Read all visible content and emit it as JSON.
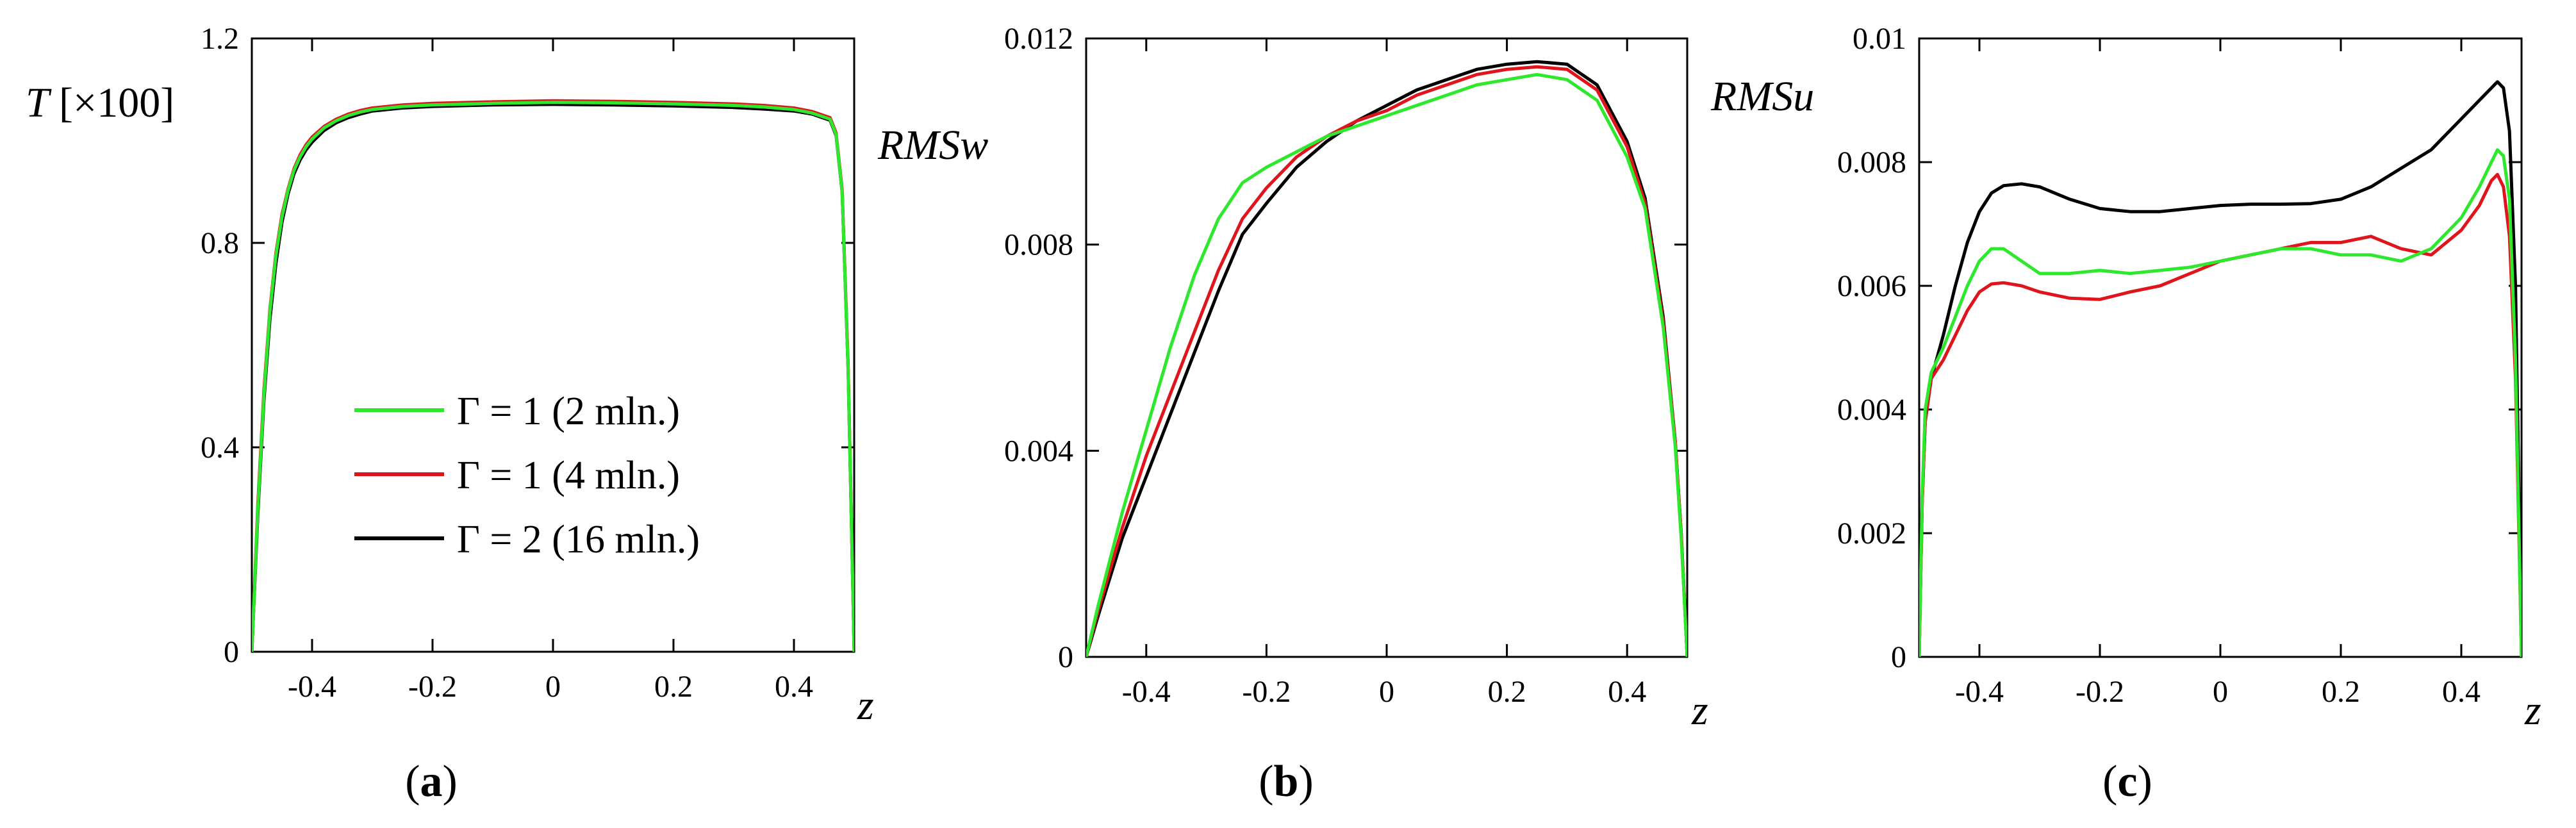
{
  "chart_data": [
    {
      "id": "a",
      "type": "line",
      "panel_label": "(a)",
      "ylabel": "T [×100]",
      "xlabel": "z",
      "xlim": [
        -0.5,
        0.5
      ],
      "ylim": [
        0,
        1.2
      ],
      "xticks": [
        -0.4,
        -0.2,
        0,
        0.2,
        0.4
      ],
      "xtick_labels": [
        "-0.4",
        "-0.2",
        "0",
        "0.2",
        "0.4"
      ],
      "yticks": [
        0,
        0.4,
        0.8,
        1.2
      ],
      "ytick_labels": [
        "0",
        "0.4",
        "0.8",
        "1.2"
      ],
      "grid": false,
      "legend": {
        "placement": "center-left",
        "entries": [
          "Γ = 1 (2 mln.)",
          "Γ = 1 (4 mln.)",
          "Γ = 2 (16 mln.)"
        ]
      },
      "series": [
        {
          "name": "Γ = 2 (16 mln.)",
          "color": "#000000",
          "x": [
            -0.5,
            -0.49,
            -0.48,
            -0.47,
            -0.46,
            -0.45,
            -0.44,
            -0.43,
            -0.42,
            -0.41,
            -0.4,
            -0.38,
            -0.36,
            -0.34,
            -0.32,
            -0.3,
            -0.25,
            -0.2,
            -0.1,
            0,
            0.1,
            0.2,
            0.3,
            0.35,
            0.4,
            0.43,
            0.46,
            0.47,
            0.48,
            0.49,
            0.5
          ],
          "y": [
            0,
            0.27,
            0.49,
            0.65,
            0.76,
            0.84,
            0.895,
            0.935,
            0.962,
            0.982,
            0.997,
            1.02,
            1.035,
            1.045,
            1.052,
            1.058,
            1.064,
            1.067,
            1.07,
            1.071,
            1.07,
            1.068,
            1.065,
            1.062,
            1.058,
            1.052,
            1.04,
            1.01,
            0.9,
            0.55,
            0
          ]
        },
        {
          "name": "Γ = 1 (4 mln.)",
          "color": "#e0141c",
          "x": [
            -0.5,
            -0.49,
            -0.48,
            -0.47,
            -0.46,
            -0.45,
            -0.44,
            -0.43,
            -0.42,
            -0.41,
            -0.4,
            -0.38,
            -0.36,
            -0.34,
            -0.32,
            -0.3,
            -0.25,
            -0.2,
            -0.1,
            0,
            0.1,
            0.2,
            0.3,
            0.35,
            0.4,
            0.43,
            0.46,
            0.47,
            0.48,
            0.49,
            0.5
          ],
          "y": [
            0,
            0.29,
            0.51,
            0.67,
            0.78,
            0.855,
            0.905,
            0.945,
            0.972,
            0.992,
            1.007,
            1.028,
            1.042,
            1.052,
            1.059,
            1.064,
            1.07,
            1.073,
            1.076,
            1.078,
            1.077,
            1.075,
            1.072,
            1.069,
            1.064,
            1.057,
            1.045,
            1.015,
            0.905,
            0.56,
            0
          ]
        },
        {
          "name": "Γ = 1 (2 mln.)",
          "color": "#2ee82e",
          "x": [
            -0.5,
            -0.49,
            -0.48,
            -0.47,
            -0.46,
            -0.45,
            -0.44,
            -0.43,
            -0.42,
            -0.41,
            -0.4,
            -0.38,
            -0.36,
            -0.34,
            -0.32,
            -0.3,
            -0.25,
            -0.2,
            -0.1,
            0,
            0.1,
            0.2,
            0.3,
            0.35,
            0.4,
            0.43,
            0.46,
            0.47,
            0.48,
            0.49,
            0.5
          ],
          "y": [
            0,
            0.28,
            0.5,
            0.665,
            0.775,
            0.85,
            0.902,
            0.942,
            0.968,
            0.988,
            1.003,
            1.025,
            1.039,
            1.049,
            1.056,
            1.061,
            1.067,
            1.07,
            1.073,
            1.075,
            1.074,
            1.072,
            1.069,
            1.066,
            1.061,
            1.054,
            1.042,
            1.012,
            0.9,
            0.55,
            0
          ]
        }
      ]
    },
    {
      "id": "b",
      "type": "line",
      "panel_label": "(b)",
      "ylabel": "RMSw",
      "xlabel": "z",
      "xlim": [
        -0.5,
        0.5
      ],
      "ylim": [
        0,
        0.012
      ],
      "xticks": [
        -0.4,
        -0.2,
        0,
        0.2,
        0.4
      ],
      "xtick_labels": [
        "-0.4",
        "-0.2",
        "0",
        "0.2",
        "0.4"
      ],
      "yticks": [
        0,
        0.004,
        0.008,
        0.012
      ],
      "ytick_labels": [
        "0",
        "0.004",
        "0.008",
        "0.012"
      ],
      "grid": false,
      "series": [
        {
          "name": "Γ = 2 (16 mln.)",
          "color": "#000000",
          "x": [
            -0.5,
            -0.48,
            -0.46,
            -0.44,
            -0.42,
            -0.4,
            -0.36,
            -0.32,
            -0.28,
            -0.24,
            -0.2,
            -0.15,
            -0.1,
            -0.05,
            0,
            0.05,
            0.1,
            0.15,
            0.2,
            0.25,
            0.3,
            0.35,
            0.4,
            0.43,
            0.46,
            0.48,
            0.49,
            0.5
          ],
          "y": [
            0,
            0.0008,
            0.00155,
            0.0023,
            0.0029,
            0.0035,
            0.0047,
            0.0059,
            0.0071,
            0.0082,
            0.0088,
            0.0095,
            0.01,
            0.0104,
            0.0107,
            0.011,
            0.0112,
            0.0114,
            0.0115,
            0.01155,
            0.0115,
            0.0111,
            0.01,
            0.0089,
            0.0066,
            0.0042,
            0.0024,
            0
          ]
        },
        {
          "name": "Γ = 1 (4 mln.)",
          "color": "#e0141c",
          "x": [
            -0.5,
            -0.48,
            -0.46,
            -0.44,
            -0.42,
            -0.4,
            -0.36,
            -0.32,
            -0.28,
            -0.24,
            -0.2,
            -0.15,
            -0.1,
            -0.05,
            0,
            0.05,
            0.1,
            0.15,
            0.2,
            0.25,
            0.3,
            0.35,
            0.4,
            0.43,
            0.46,
            0.48,
            0.49,
            0.5
          ],
          "y": [
            0,
            0.0009,
            0.0017,
            0.0025,
            0.0032,
            0.0039,
            0.0051,
            0.0063,
            0.0075,
            0.0085,
            0.0091,
            0.0097,
            0.0101,
            0.0104,
            0.0106,
            0.0109,
            0.0111,
            0.0113,
            0.0114,
            0.01145,
            0.0114,
            0.011,
            0.0099,
            0.0088,
            0.0065,
            0.0042,
            0.0024,
            0
          ]
        },
        {
          "name": "Γ = 1 (2 mln.)",
          "color": "#2ee82e",
          "x": [
            -0.5,
            -0.48,
            -0.46,
            -0.44,
            -0.42,
            -0.4,
            -0.36,
            -0.32,
            -0.28,
            -0.24,
            -0.2,
            -0.15,
            -0.1,
            -0.05,
            0,
            0.05,
            0.1,
            0.15,
            0.2,
            0.25,
            0.3,
            0.35,
            0.4,
            0.43,
            0.46,
            0.48,
            0.49,
            0.5
          ],
          "y": [
            0,
            0.001,
            0.0019,
            0.0028,
            0.0036,
            0.0044,
            0.006,
            0.0074,
            0.0085,
            0.0092,
            0.0095,
            0.0098,
            0.0101,
            0.0103,
            0.0105,
            0.0107,
            0.0109,
            0.0111,
            0.0112,
            0.0113,
            0.0112,
            0.0108,
            0.0097,
            0.0087,
            0.0064,
            0.0041,
            0.0023,
            0
          ]
        }
      ]
    },
    {
      "id": "c",
      "type": "line",
      "panel_label": "(c)",
      "ylabel": "RMSu",
      "xlabel": "z",
      "xlim": [
        -0.5,
        0.5
      ],
      "ylim": [
        0,
        0.01
      ],
      "xticks": [
        -0.4,
        -0.2,
        0,
        0.2,
        0.4
      ],
      "xtick_labels": [
        "-0.4",
        "-0.2",
        "0",
        "0.2",
        "0.4"
      ],
      "yticks": [
        0,
        0.002,
        0.004,
        0.006,
        0.008,
        0.01
      ],
      "ytick_labels": [
        "0",
        "0.002",
        "0.004",
        "0.006",
        "0.008",
        "0.01"
      ],
      "grid": false,
      "series": [
        {
          "name": "Γ = 2 (16 mln.)",
          "color": "#000000",
          "x": [
            -0.5,
            -0.495,
            -0.49,
            -0.48,
            -0.46,
            -0.44,
            -0.42,
            -0.4,
            -0.38,
            -0.36,
            -0.33,
            -0.3,
            -0.25,
            -0.2,
            -0.15,
            -0.1,
            -0.05,
            0,
            0.05,
            0.1,
            0.15,
            0.2,
            0.25,
            0.3,
            0.35,
            0.4,
            0.43,
            0.45,
            0.46,
            0.47,
            0.48,
            0.49,
            0.5
          ],
          "y": [
            0,
            0.0025,
            0.0038,
            0.0045,
            0.0052,
            0.006,
            0.0067,
            0.0072,
            0.0075,
            0.00762,
            0.00765,
            0.0076,
            0.0074,
            0.00725,
            0.0072,
            0.0072,
            0.00725,
            0.0073,
            0.00732,
            0.00732,
            0.00733,
            0.0074,
            0.0076,
            0.0079,
            0.0082,
            0.0087,
            0.009,
            0.0092,
            0.0093,
            0.0092,
            0.0085,
            0.006,
            0
          ]
        },
        {
          "name": "Γ = 1 (4 mln.)",
          "color": "#e0141c",
          "x": [
            -0.5,
            -0.495,
            -0.49,
            -0.48,
            -0.46,
            -0.44,
            -0.42,
            -0.4,
            -0.38,
            -0.36,
            -0.33,
            -0.3,
            -0.25,
            -0.2,
            -0.15,
            -0.1,
            -0.05,
            0,
            0.05,
            0.1,
            0.15,
            0.2,
            0.25,
            0.3,
            0.35,
            0.4,
            0.43,
            0.45,
            0.46,
            0.47,
            0.48,
            0.49,
            0.5
          ],
          "y": [
            0,
            0.0025,
            0.0038,
            0.0045,
            0.0048,
            0.0052,
            0.0056,
            0.0059,
            0.00603,
            0.00605,
            0.006,
            0.0059,
            0.0058,
            0.00578,
            0.0059,
            0.006,
            0.0062,
            0.0064,
            0.0065,
            0.0066,
            0.0067,
            0.0067,
            0.0068,
            0.0066,
            0.0065,
            0.0069,
            0.0073,
            0.0077,
            0.0078,
            0.0076,
            0.0068,
            0.0045,
            0
          ]
        },
        {
          "name": "Γ = 1 (2 mln.)",
          "color": "#2ee82e",
          "x": [
            -0.5,
            -0.495,
            -0.49,
            -0.48,
            -0.46,
            -0.44,
            -0.42,
            -0.4,
            -0.38,
            -0.36,
            -0.33,
            -0.3,
            -0.25,
            -0.2,
            -0.15,
            -0.1,
            -0.05,
            0,
            0.05,
            0.1,
            0.15,
            0.2,
            0.25,
            0.3,
            0.35,
            0.4,
            0.43,
            0.45,
            0.46,
            0.47,
            0.48,
            0.49,
            0.5
          ],
          "y": [
            0,
            0.0026,
            0.004,
            0.0046,
            0.005,
            0.0055,
            0.006,
            0.0064,
            0.0066,
            0.0066,
            0.0064,
            0.0062,
            0.0062,
            0.00625,
            0.0062,
            0.00625,
            0.0063,
            0.0064,
            0.0065,
            0.0066,
            0.0066,
            0.0065,
            0.0065,
            0.0064,
            0.0066,
            0.0071,
            0.0076,
            0.008,
            0.0082,
            0.0081,
            0.0074,
            0.0048,
            0
          ]
        }
      ]
    }
  ]
}
